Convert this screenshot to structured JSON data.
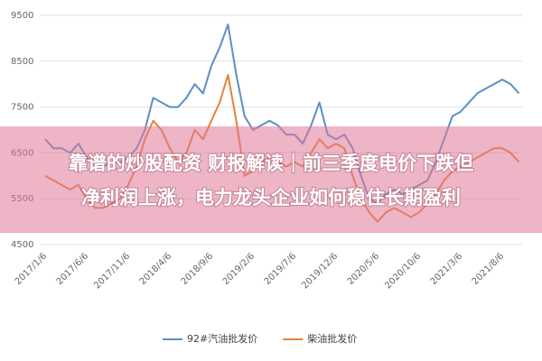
{
  "chart_data": {
    "type": "line",
    "categories": [
      "2017/1/6",
      null,
      null,
      null,
      null,
      "2017/6/6",
      null,
      null,
      null,
      null,
      "2017/11/6",
      null,
      null,
      null,
      null,
      "2018/4/6",
      null,
      null,
      null,
      null,
      "2018/9/6",
      null,
      null,
      null,
      null,
      "2019/2/6",
      null,
      null,
      null,
      null,
      "2019/7/6",
      null,
      null,
      null,
      null,
      "2019/12/6",
      null,
      null,
      null,
      null,
      "2020/5/6",
      null,
      null,
      null,
      null,
      "2020/10/6",
      null,
      null,
      null,
      null,
      "2021/3/6",
      null,
      null,
      null,
      null,
      "2021/8/6",
      null,
      null
    ],
    "series": [
      {
        "name": "92#汽油批发价",
        "color": "#5b8fc9",
        "values": [
          6800,
          6600,
          6600,
          6500,
          6700,
          6400,
          6300,
          6200,
          6300,
          6300,
          6400,
          6600,
          7000,
          7700,
          7600,
          7500,
          7500,
          7700,
          8000,
          7800,
          8400,
          8800,
          9300,
          8200,
          7300,
          7000,
          7100,
          7200,
          7100,
          6900,
          6900,
          6700,
          7100,
          7600,
          6900,
          6800,
          6900,
          6600,
          6000,
          5500,
          5400,
          5600,
          5700,
          5600,
          5700,
          5800,
          5900,
          6300,
          6800,
          7300,
          7400,
          7600,
          7800,
          7900,
          8000,
          8100,
          8000,
          7800
        ]
      },
      {
        "name": "柴油批发价",
        "color": "#e8813a",
        "values": [
          6000,
          5900,
          5800,
          5700,
          5800,
          5500,
          5300,
          5300,
          5400,
          5500,
          5800,
          6200,
          6800,
          7200,
          7000,
          6600,
          6300,
          6500,
          7000,
          6800,
          7200,
          7600,
          8200,
          7200,
          6000,
          6100,
          6300,
          6400,
          6300,
          6200,
          6300,
          6200,
          6500,
          6800,
          6600,
          6700,
          6600,
          6000,
          5500,
          5200,
          5000,
          5200,
          5300,
          5200,
          5100,
          5200,
          5400,
          5600,
          5900,
          6100,
          6200,
          6300,
          6400,
          6500,
          6600,
          6600,
          6500,
          6300
        ]
      }
    ],
    "ylim": [
      4500,
      9500
    ],
    "yticks": [
      4500,
      5500,
      6500,
      7500,
      8500,
      9500
    ],
    "grid": true,
    "legend": "bottom"
  },
  "banner": {
    "lines": [
      "靠谱的炒股配资 财报解读｜前三季度电价下跌但",
      "净利润上涨，电力龙头企业如何稳住长期盈利"
    ]
  }
}
